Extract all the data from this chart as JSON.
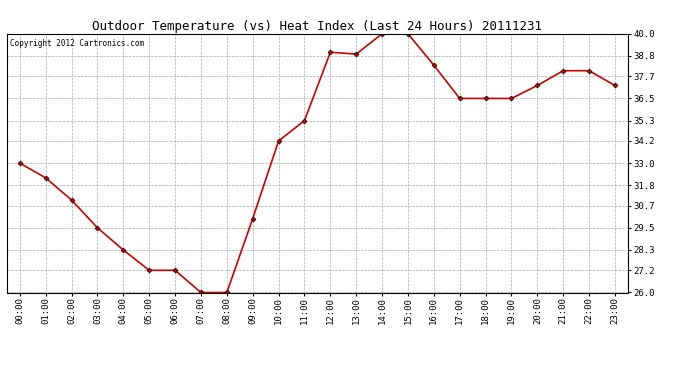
{
  "title": "Outdoor Temperature (vs) Heat Index (Last 24 Hours) 20111231",
  "copyright": "Copyright 2012 Cartronics.com",
  "hours": [
    "00:00",
    "01:00",
    "02:00",
    "03:00",
    "04:00",
    "05:00",
    "06:00",
    "07:00",
    "08:00",
    "09:00",
    "10:00",
    "11:00",
    "12:00",
    "13:00",
    "14:00",
    "15:00",
    "16:00",
    "17:00",
    "18:00",
    "19:00",
    "20:00",
    "21:00",
    "22:00",
    "23:00"
  ],
  "values": [
    33.0,
    32.2,
    31.0,
    29.5,
    28.3,
    27.2,
    27.2,
    26.0,
    26.0,
    30.0,
    34.2,
    35.3,
    39.0,
    38.9,
    40.0,
    40.0,
    38.3,
    36.5,
    36.5,
    36.5,
    37.2,
    38.0,
    38.0,
    37.2
  ],
  "line_color": "#cc0000",
  "marker": "D",
  "marker_size": 2.5,
  "ylim_min": 26.0,
  "ylim_max": 40.0,
  "ytick_values": [
    26.0,
    27.2,
    28.3,
    29.5,
    30.7,
    31.8,
    33.0,
    34.2,
    35.3,
    36.5,
    37.7,
    38.8,
    40.0
  ],
  "bg_color": "#ffffff",
  "grid_color": "#aaaaaa",
  "title_fontsize": 9,
  "tick_fontsize": 6.5,
  "copyright_fontsize": 5.5
}
